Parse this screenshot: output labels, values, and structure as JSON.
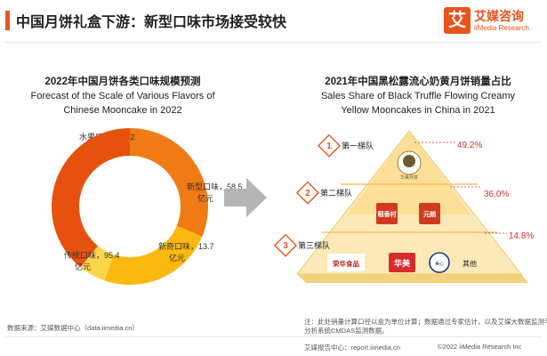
{
  "header": {
    "title": "中国月饼礼盒下游：新型口味市场接受较快",
    "logo_mark": "艾",
    "logo_cn": "艾媒咨询",
    "logo_en": "iiMedia Research"
  },
  "chart_data": [
    {
      "type": "pie",
      "donut": true,
      "title": "2022年中国月饼各类口味规模预测",
      "subtitle": "Forecast of the Scale of Various Flavors of Chinese Mooncake in 2022",
      "slices": [
        {
          "label": "水果口味",
          "value": 76.2,
          "unit": "亿元",
          "color": "#f07a14"
        },
        {
          "label": "新型口味",
          "value": 58.5,
          "unit": "亿元",
          "color": "#fbb80f"
        },
        {
          "label": "新奇口味",
          "value": 13.7,
          "unit": "亿元",
          "color": "#fcd64a"
        },
        {
          "label": "传统口味",
          "value": 95.4,
          "unit": "亿元",
          "color": "#e6520e"
        }
      ]
    },
    {
      "type": "pyramid",
      "title": "2021年中国黑松露流心奶黄月饼销量占比",
      "subtitle": "Sales Share of Black Truffle Flowing Creamy Yellow Mooncakes in China in 2021",
      "tiers": [
        {
          "num": "1",
          "name": "第一梯队",
          "share": "49.2%",
          "value": 49.2,
          "brands": [
            "华美月饼"
          ]
        },
        {
          "num": "2",
          "name": "第二梯队",
          "share": "36.0%",
          "value": 36.0,
          "brands": [
            "稻香村",
            "元朗"
          ]
        },
        {
          "num": "3",
          "name": "第三梯队",
          "share": "14.8%",
          "value": 14.8,
          "brands": [
            "荣华食品",
            "华美",
            "美心"
          ],
          "other_label": "其他"
        }
      ]
    }
  ],
  "footer": {
    "source": "数据来源：艾媒数据中心（data.iimedia.cn）",
    "note_line1": "注：此处销量计算口径以盒为单位计算；数据通过专家估计，以及艾媒大数据监测与",
    "note_line2": "分析系统CMDAS监测数据。",
    "report_link": "艾媒报告中心：report.iimedia.cn",
    "copyright": "©2022 iiMedia Research Inc"
  },
  "colors": {
    "accent": "#e8541c",
    "pyramid_light": "#fde9b8",
    "pyramid_mid": "#fbd57a",
    "arrow": "#b5b5b5",
    "share_red": "#d82b2b"
  }
}
